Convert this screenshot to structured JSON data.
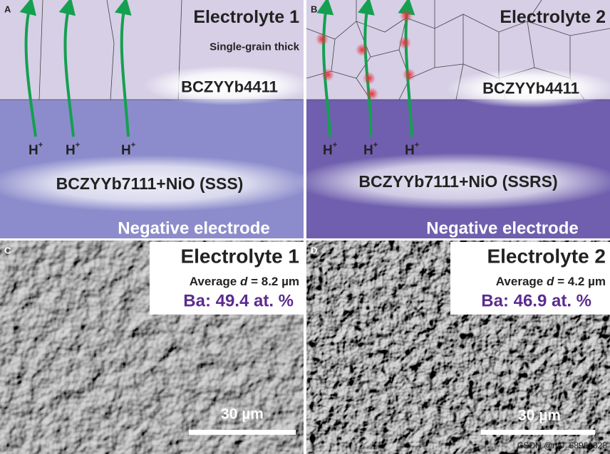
{
  "panels": [
    {
      "letter": "A",
      "title": "Electrolyte 1",
      "note": "Single-grain thick",
      "top_layer": "BCZYYb4411",
      "protons": [
        {
          "base": "H",
          "sup": "+"
        },
        {
          "base": "H",
          "sup": "+"
        },
        {
          "base": "H",
          "sup": "+"
        }
      ],
      "bottom_layer": "BCZYYb7111+NiO (SSS)",
      "electrode": "Negative electrode"
    },
    {
      "letter": "B",
      "title": "Electrolyte 2",
      "top_layer": "BCZYYb4411",
      "protons": [
        {
          "base": "H",
          "sup": "+"
        },
        {
          "base": "H",
          "sup": "+"
        },
        {
          "base": "H",
          "sup": "+"
        }
      ],
      "bottom_layer": "BCZYYb7111+NiO (SSRS)",
      "electrode": "Negative electrode"
    },
    {
      "letter": "C",
      "title": "Electrolyte 1",
      "grain_size": {
        "prefix": "Average ",
        "symbol": "d",
        "rest": " = 8.2 µm"
      },
      "ba": "Ba: 49.4 at. %",
      "scale_bar": "30 µm"
    },
    {
      "letter": "D",
      "title": "Electrolyte 2",
      "grain_size": {
        "prefix": "Average ",
        "symbol": "d",
        "rest": " = 4.2 µm"
      },
      "ba": "Ba: 46.9 at. %",
      "scale_bar": "30 µm"
    }
  ],
  "watermark": "CSDN @m0_68961328"
}
